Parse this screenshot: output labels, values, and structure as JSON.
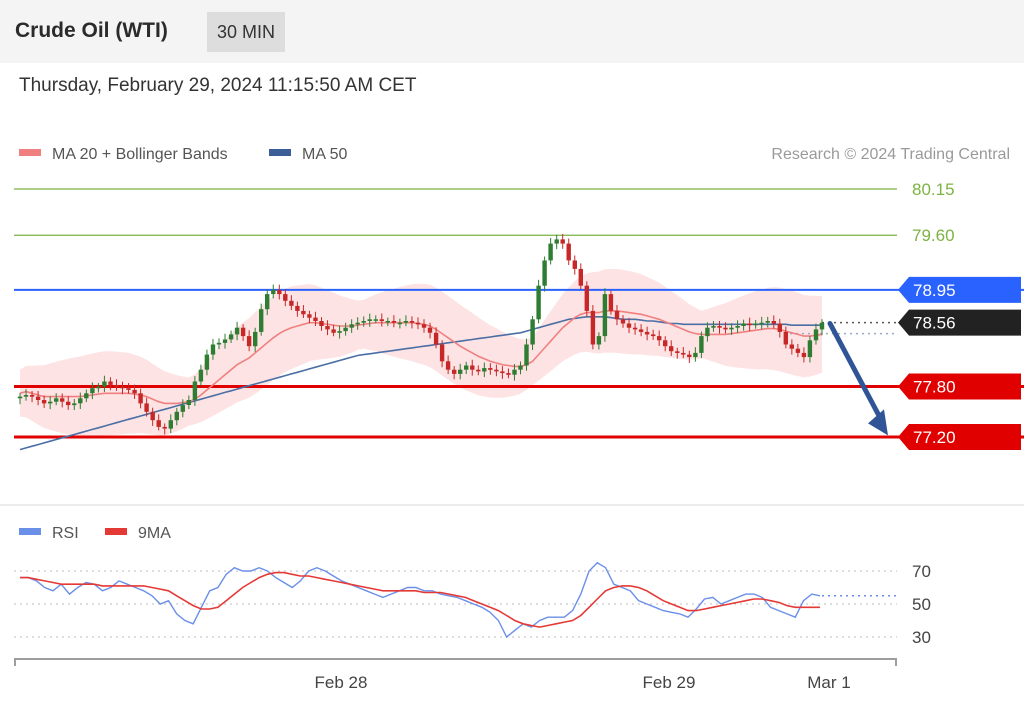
{
  "header": {
    "title": "Crude Oil (WTI)",
    "timeframe": "30 MIN",
    "datetime": "Thursday, February 29, 2024 11:15:50 AM CET"
  },
  "legend": {
    "ma20": "MA 20 + Bollinger Bands",
    "ma50": "MA 50",
    "credit": "Research © 2024 Trading Central",
    "rsi": "RSI",
    "rsi_ma": "9MA"
  },
  "colors": {
    "up": "#2e7d32",
    "down": "#c62828",
    "ma20": "#f08080",
    "ma50": "#4a6fa5",
    "band_fill": "#fde0e0",
    "green_level": "#7cb342",
    "blue_level": "#2962ff",
    "red_level": "#e00000",
    "current": "#222222",
    "arrow": "#2f5597",
    "rsi_line": "#6a8fe8",
    "rsi_ma_line": "#e53935"
  },
  "chart_data": [
    {
      "type": "candlestick",
      "title": "Crude Oil (WTI)",
      "interval": "30 MIN",
      "x_ticks": [
        "Feb 28",
        "Feb 29",
        "Mar 1"
      ],
      "ylim": [
        76.95,
        80.3
      ],
      "levels": [
        {
          "value": 80.15,
          "label": "80.15",
          "kind": "resistance"
        },
        {
          "value": 79.6,
          "label": "79.60",
          "kind": "resistance"
        },
        {
          "value": 78.95,
          "label": "78.95",
          "kind": "pivot"
        },
        {
          "value": 78.56,
          "label": "78.56",
          "kind": "last"
        },
        {
          "value": 77.8,
          "label": "77.80",
          "kind": "support"
        },
        {
          "value": 77.2,
          "label": "77.20",
          "kind": "support"
        }
      ],
      "closes": [
        77.68,
        77.7,
        77.68,
        77.64,
        77.6,
        77.62,
        77.66,
        77.62,
        77.58,
        77.6,
        77.66,
        77.72,
        77.78,
        77.8,
        77.86,
        77.82,
        77.8,
        77.78,
        77.76,
        77.72,
        77.6,
        77.5,
        77.4,
        77.32,
        77.3,
        77.4,
        77.5,
        77.58,
        77.64,
        77.86,
        78.0,
        78.18,
        78.3,
        78.32,
        78.36,
        78.42,
        78.5,
        78.4,
        78.28,
        78.45,
        78.72,
        78.9,
        78.95,
        78.9,
        78.82,
        78.76,
        78.7,
        78.66,
        78.62,
        78.58,
        78.52,
        78.48,
        78.44,
        78.46,
        78.5,
        78.54,
        78.56,
        78.58,
        78.6,
        78.6,
        78.58,
        78.58,
        78.56,
        78.56,
        78.58,
        78.56,
        78.54,
        78.5,
        78.44,
        78.3,
        78.1,
        78.0,
        77.95,
        78.0,
        78.05,
        78.0,
        77.98,
        78.02,
        78.0,
        77.98,
        77.96,
        77.94,
        78.0,
        78.05,
        78.3,
        78.6,
        79.0,
        79.3,
        79.5,
        79.55,
        79.5,
        79.3,
        79.2,
        79.0,
        78.7,
        78.3,
        78.4,
        78.9,
        78.7,
        78.6,
        78.55,
        78.5,
        78.48,
        78.45,
        78.42,
        78.4,
        78.35,
        78.28,
        78.22,
        78.2,
        78.18,
        78.15,
        78.2,
        78.4,
        78.5,
        78.52,
        78.5,
        78.48,
        78.5,
        78.52,
        78.55,
        78.53,
        78.55,
        78.56,
        78.58,
        78.55,
        78.45,
        78.3,
        78.25,
        78.2,
        78.15,
        78.35,
        78.48,
        78.56
      ],
      "ma20": [
        77.72,
        77.74,
        77.72,
        77.7,
        77.68,
        77.68,
        77.68,
        77.68,
        77.68,
        77.68,
        77.68,
        77.69,
        77.7,
        77.71,
        77.72,
        77.72,
        77.72,
        77.72,
        77.72,
        77.71,
        77.7,
        77.68,
        77.65,
        77.62,
        77.6,
        77.6,
        77.6,
        77.61,
        77.62,
        77.65,
        77.7,
        77.76,
        77.82,
        77.88,
        77.94,
        78.0,
        78.06,
        78.1,
        78.14,
        78.2,
        78.26,
        78.32,
        78.38,
        78.43,
        78.47,
        78.5,
        78.52,
        78.54,
        78.56,
        78.56,
        78.55,
        78.54,
        78.53,
        78.52,
        78.52,
        78.52,
        78.53,
        78.54,
        78.55,
        78.56,
        78.56,
        78.56,
        78.56,
        78.56,
        78.56,
        78.56,
        78.55,
        78.54,
        78.52,
        78.48,
        78.43,
        78.38,
        78.33,
        78.28,
        78.24,
        78.2,
        78.16,
        78.13,
        78.1,
        78.08,
        78.06,
        78.05,
        78.04,
        78.04,
        78.06,
        78.1,
        78.18,
        78.26,
        78.34,
        78.42,
        78.5,
        78.56,
        78.62,
        78.66,
        78.68,
        78.68,
        78.68,
        78.7,
        78.7,
        78.7,
        78.69,
        78.68,
        78.67,
        78.66,
        78.64,
        78.62,
        78.6,
        78.57,
        78.54,
        78.51,
        78.48,
        78.45,
        78.43,
        78.42,
        78.42,
        78.42,
        78.42,
        78.42,
        78.43,
        78.44,
        78.45,
        78.46,
        78.47,
        78.48,
        78.49,
        78.49,
        78.48,
        78.46,
        78.44,
        78.42,
        78.4,
        78.4,
        78.41,
        78.42
      ],
      "ma50": [
        77.05,
        77.07,
        77.09,
        77.11,
        77.13,
        77.15,
        77.17,
        77.19,
        77.21,
        77.23,
        77.25,
        77.27,
        77.29,
        77.31,
        77.33,
        77.35,
        77.37,
        77.39,
        77.41,
        77.43,
        77.45,
        77.47,
        77.49,
        77.51,
        77.53,
        77.55,
        77.57,
        77.59,
        77.61,
        77.63,
        77.65,
        77.67,
        77.69,
        77.71,
        77.73,
        77.75,
        77.77,
        77.79,
        77.81,
        77.83,
        77.85,
        77.87,
        77.89,
        77.91,
        77.93,
        77.95,
        77.97,
        77.99,
        78.01,
        78.03,
        78.05,
        78.07,
        78.09,
        78.11,
        78.13,
        78.15,
        78.17,
        78.18,
        78.19,
        78.2,
        78.21,
        78.22,
        78.23,
        78.24,
        78.25,
        78.26,
        78.27,
        78.28,
        78.29,
        78.3,
        78.31,
        78.32,
        78.33,
        78.34,
        78.35,
        78.36,
        78.37,
        78.38,
        78.39,
        78.4,
        78.41,
        78.42,
        78.43,
        78.44,
        78.46,
        78.48,
        78.5,
        78.52,
        78.54,
        78.56,
        78.58,
        78.6,
        78.61,
        78.62,
        78.63,
        78.63,
        78.63,
        78.63,
        78.62,
        78.61,
        78.6,
        78.6,
        78.6,
        78.59,
        78.58,
        78.58,
        78.57,
        78.56,
        78.55,
        78.55,
        78.54,
        78.54,
        78.54,
        78.54,
        78.54,
        78.54,
        78.54,
        78.54,
        78.54,
        78.54,
        78.54,
        78.54,
        78.54,
        78.54,
        78.54,
        78.54,
        78.54,
        78.54,
        78.53,
        78.53,
        78.53,
        78.53,
        78.53,
        78.53
      ]
    },
    {
      "type": "line",
      "title": "RSI",
      "ylim": [
        20,
        80
      ],
      "y_ticks": [
        70,
        50,
        30
      ],
      "rsi": [
        66,
        66,
        64,
        60,
        58,
        62,
        56,
        60,
        63,
        62,
        58,
        60,
        64,
        62,
        60,
        58,
        55,
        50,
        52,
        44,
        40,
        38,
        48,
        58,
        60,
        68,
        72,
        70,
        70,
        72,
        70,
        66,
        63,
        60,
        64,
        70,
        72,
        70,
        67,
        64,
        62,
        60,
        58,
        56,
        54,
        56,
        58,
        60,
        60,
        58,
        58,
        56,
        55,
        54,
        52,
        50,
        48,
        45,
        40,
        30,
        34,
        38,
        36,
        40,
        42,
        42,
        42,
        46,
        56,
        70,
        75,
        72,
        62,
        60,
        58,
        52,
        50,
        48,
        46,
        45,
        44,
        42,
        47,
        53,
        54,
        50,
        52,
        54,
        56,
        56,
        54,
        48,
        46,
        44,
        42,
        52,
        56,
        55
      ],
      "ma9": [
        66,
        66,
        65,
        64,
        63,
        62,
        62,
        62,
        62,
        62,
        61,
        61,
        61,
        61,
        61,
        61,
        60,
        59,
        58,
        55,
        52,
        49,
        47,
        47,
        48,
        52,
        56,
        60,
        63,
        66,
        68,
        69,
        69,
        68,
        67,
        67,
        66,
        65,
        64,
        63,
        62,
        61,
        60,
        59,
        58,
        58,
        58,
        58,
        58,
        57,
        57,
        57,
        56,
        55,
        54,
        52,
        50,
        48,
        46,
        43,
        40,
        38,
        37,
        36,
        37,
        38,
        39,
        40,
        43,
        48,
        53,
        58,
        60,
        61,
        61,
        60,
        58,
        55,
        52,
        50,
        48,
        46,
        46,
        47,
        48,
        49,
        50,
        51,
        52,
        53,
        53,
        52,
        51,
        49,
        48,
        48,
        48,
        48
      ]
    }
  ]
}
